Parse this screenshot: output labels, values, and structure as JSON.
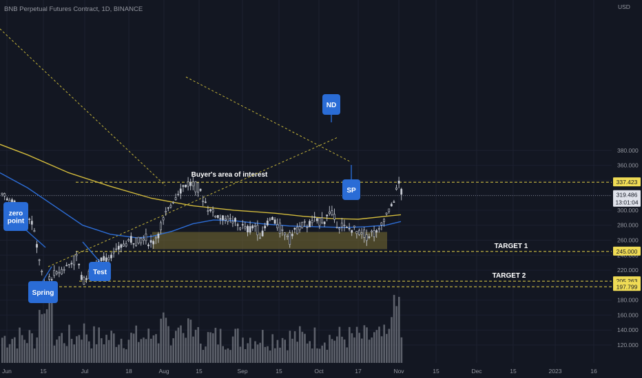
{
  "header": {
    "symbol_title": "BNB Perpetual Futures Contract, 1D, BINANCE"
  },
  "colors": {
    "background": "#131722",
    "grid": "#1c2030",
    "candle": "#c8ccd4",
    "volume": "#6b6f78",
    "ma_yellow": "#d4bc3c",
    "ma_blue": "#2d6ed8",
    "trend_dash": "#c9b83a",
    "level_dash": "#e8d34a",
    "zone": "#7a6e32",
    "callout": "#2a6cd6",
    "axis_text": "#9598a1",
    "price_now_bg": "#e0e3eb"
  },
  "chart_data": {
    "type": "candlestick",
    "title": "BNB Perpetual Futures Contract, 1D, BINANCE",
    "currency": "USD",
    "ylim": [
      112,
      395
    ],
    "y_ticks": [
      120,
      140,
      160,
      180,
      200,
      220,
      240,
      260,
      280,
      300,
      320,
      340,
      360,
      380
    ],
    "x_tick_labels": [
      "Jun",
      "15",
      "Jul",
      "18",
      "Aug",
      "15",
      "Sep",
      "15",
      "Oct",
      "17",
      "Nov",
      "15",
      "Dec",
      "15",
      "2023",
      "16"
    ],
    "levels": [
      {
        "value": 337.423,
        "label": "337.423"
      },
      {
        "value": 245.0,
        "label": "245.000"
      },
      {
        "value": 205.263,
        "label": "205.263"
      },
      {
        "value": 197.799,
        "label": "197.799"
      }
    ],
    "current_price": {
      "value": 319.486,
      "label": "319.486",
      "countdown": "13:01:04"
    },
    "zone": {
      "label": "Buyer's area of interest",
      "low": 248,
      "high": 271
    },
    "targets": [
      "TARGET 1",
      "TARGET 2"
    ],
    "annotations": [
      "zero point",
      "Spring",
      "Test",
      "ND",
      "SP"
    ],
    "moving_averages": [
      {
        "color": "yellow",
        "anchors": [
          [
            0,
            388
          ],
          [
            40,
            374
          ],
          [
            100,
            350
          ],
          [
            160,
            332
          ],
          [
            220,
            316
          ],
          [
            280,
            306
          ],
          [
            340,
            300
          ],
          [
            400,
            296
          ],
          [
            440,
            292
          ],
          [
            480,
            289
          ],
          [
            520,
            288
          ],
          [
            560,
            292
          ],
          [
            582,
            294
          ]
        ]
      },
      {
        "color": "blue",
        "anchors": [
          [
            0,
            350
          ],
          [
            40,
            330
          ],
          [
            80,
            305
          ],
          [
            120,
            280
          ],
          [
            160,
            268
          ],
          [
            200,
            263
          ],
          [
            220,
            265
          ],
          [
            250,
            272
          ],
          [
            280,
            282
          ],
          [
            310,
            287
          ],
          [
            340,
            286
          ],
          [
            380,
            282
          ],
          [
            420,
            279
          ],
          [
            460,
            278
          ],
          [
            500,
            277
          ],
          [
            530,
            278
          ],
          [
            560,
            280
          ],
          [
            582,
            285
          ]
        ]
      }
    ],
    "price_path": [
      [
        0,
        320
      ],
      [
        8,
        316
      ],
      [
        15,
        312
      ],
      [
        25,
        305
      ],
      [
        35,
        300
      ],
      [
        45,
        285
      ],
      [
        52,
        255
      ],
      [
        58,
        225
      ],
      [
        62,
        200
      ],
      [
        68,
        205
      ],
      [
        75,
        212
      ],
      [
        85,
        218
      ],
      [
        95,
        225
      ],
      [
        105,
        232
      ],
      [
        112,
        236
      ],
      [
        118,
        205
      ],
      [
        123,
        210
      ],
      [
        130,
        215
      ],
      [
        140,
        228
      ],
      [
        150,
        236
      ],
      [
        160,
        240
      ],
      [
        170,
        248
      ],
      [
        180,
        255
      ],
      [
        190,
        262
      ],
      [
        200,
        260
      ],
      [
        210,
        263
      ],
      [
        220,
        254
      ],
      [
        232,
        278
      ],
      [
        245,
        305
      ],
      [
        255,
        320
      ],
      [
        265,
        332
      ],
      [
        272,
        336
      ],
      [
        280,
        334
      ],
      [
        290,
        325
      ],
      [
        300,
        305
      ],
      [
        310,
        295
      ],
      [
        320,
        290
      ],
      [
        330,
        288
      ],
      [
        340,
        282
      ],
      [
        350,
        278
      ],
      [
        360,
        274
      ],
      [
        370,
        280
      ],
      [
        378,
        262
      ],
      [
        385,
        282
      ],
      [
        390,
        286
      ],
      [
        395,
        290
      ],
      [
        400,
        280
      ],
      [
        405,
        276
      ],
      [
        410,
        271
      ],
      [
        415,
        268
      ],
      [
        420,
        262
      ],
      [
        425,
        272
      ],
      [
        430,
        276
      ],
      [
        440,
        278
      ],
      [
        450,
        283
      ],
      [
        460,
        286
      ],
      [
        470,
        289
      ],
      [
        478,
        298
      ],
      [
        483,
        290
      ],
      [
        490,
        283
      ],
      [
        500,
        277
      ],
      [
        510,
        274
      ],
      [
        520,
        270
      ],
      [
        530,
        268
      ],
      [
        540,
        269
      ],
      [
        550,
        273
      ],
      [
        555,
        286
      ],
      [
        562,
        297
      ],
      [
        570,
        310
      ],
      [
        575,
        330
      ],
      [
        579,
        336
      ],
      [
        583,
        320
      ]
    ],
    "volume_hint": "daily volume histogram along bottom"
  },
  "labels": {
    "usd": "USD",
    "zero_point": "zero\npoint",
    "spring": "Spring",
    "test": "Test",
    "nd": "ND",
    "sp": "SP",
    "target1": "TARGET 1",
    "target2": "TARGET 2",
    "zone": "Buyer's area of interest"
  }
}
